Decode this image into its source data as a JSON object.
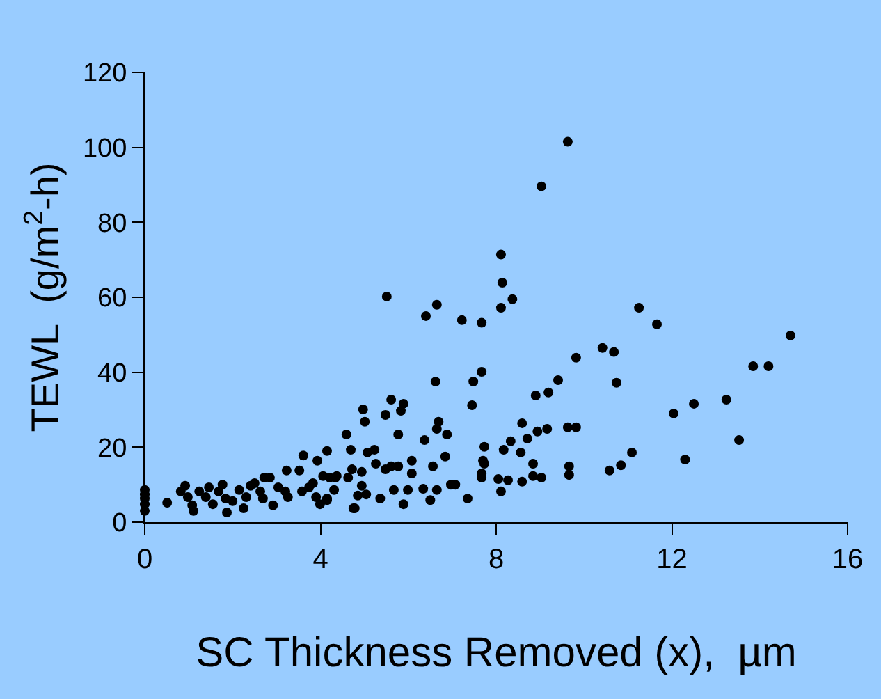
{
  "chart_data": {
    "type": "scatter",
    "xlabel": "SC Thickness Removed (x),  µm",
    "ylabel": "TEWL  (g/m$^{2}$-h)",
    "xlim": [
      0,
      16
    ],
    "xticks": [
      0,
      4,
      8,
      12,
      16
    ],
    "ylim": [
      0,
      120
    ],
    "yticks": [
      0,
      20,
      40,
      60,
      80,
      100,
      120
    ],
    "grid": false,
    "marker": "circle",
    "series": [
      {
        "color": "#000000",
        "x": [
          9.63,
          9.03,
          8.11,
          8.14,
          8.37,
          8.11,
          5.51,
          6.4,
          6.65,
          7.22,
          7.67,
          10.42,
          10.68,
          11.25,
          11.66,
          14.7,
          13.85,
          14.2,
          13.24,
          13.53,
          12.04,
          12.5,
          12.3,
          9.82,
          9.41,
          9.19,
          8.9,
          10.74,
          9.16,
          9.63,
          9.82,
          8.94,
          8.84,
          9.66,
          9.66,
          8.84,
          10.58,
          10.84,
          11.09,
          8.59,
          6.62,
          7.48,
          7.67,
          7.45,
          5.61,
          5.48,
          5.89,
          5.83,
          4.97,
          5.01,
          6.69,
          6.65,
          6.88,
          4.59,
          5.77,
          6.37,
          8.59,
          8.71,
          7.73,
          8.33,
          8.17,
          8.56,
          7.7,
          7.73,
          7.67,
          7.67,
          8.05,
          8.27,
          8.11,
          9.03,
          6.84,
          6.56,
          6.08,
          6.08,
          5.77,
          6.34,
          6.65,
          6.5,
          6.97,
          7.07,
          7.35,
          5.89,
          5.99,
          5.67,
          5.36,
          4.75,
          5.04,
          4.85,
          4.94,
          5.23,
          5.07,
          4.69,
          4.15,
          5.26,
          5.48,
          5.61,
          4.94,
          4.72,
          4.63,
          4.34,
          4.31,
          4.15,
          0,
          0,
          0,
          0,
          0,
          0.51,
          0.92,
          0.82,
          0.98,
          1.08,
          1.11,
          1.24,
          1.46,
          1.39,
          1.55,
          1.68,
          1.77,
          1.84,
          1.87,
          2.0,
          2.15,
          2.25,
          2.31,
          2.41,
          2.5,
          2.63,
          2.72,
          2.85,
          2.69,
          2.92,
          3.04,
          3.2,
          3.26,
          3.23,
          3.52,
          3.61,
          3.93,
          3.58,
          3.74,
          3.9,
          3.99,
          4.15,
          3.83,
          4.06,
          4.21,
          4.37,
          4.78
        ],
        "values": [
          101.5,
          89.6,
          71.4,
          63.9,
          59.5,
          57.2,
          60.2,
          55.0,
          58.0,
          53.9,
          53.2,
          46.5,
          45.4,
          57.2,
          52.8,
          49.8,
          41.6,
          41.6,
          32.7,
          21.9,
          29.0,
          31.6,
          16.7,
          43.9,
          37.9,
          34.6,
          33.8,
          37.2,
          24.9,
          25.3,
          25.3,
          24.2,
          15.6,
          14.9,
          12.6,
          12.3,
          13.8,
          15.2,
          18.6,
          10.8,
          37.5,
          37.5,
          40.1,
          31.2,
          32.7,
          28.6,
          31.6,
          29.7,
          30.1,
          26.8,
          26.8,
          24.9,
          23.4,
          23.4,
          23.4,
          21.9,
          26.4,
          22.3,
          20.1,
          21.6,
          19.3,
          18.6,
          16.4,
          15.6,
          13.0,
          11.9,
          11.5,
          11.2,
          8.2,
          11.9,
          17.5,
          14.9,
          16.4,
          13.0,
          14.9,
          8.9,
          8.6,
          5.9,
          10.0,
          10.0,
          6.3,
          4.8,
          8.6,
          8.6,
          6.3,
          3.7,
          7.4,
          7.1,
          9.7,
          19.3,
          18.6,
          19.3,
          19.0,
          15.6,
          14.1,
          14.9,
          13.4,
          14.1,
          11.9,
          11.9,
          8.6,
          5.9,
          8.6,
          7.4,
          6.3,
          4.8,
          3.0,
          5.2,
          9.7,
          8.2,
          6.7,
          4.5,
          3.0,
          8.2,
          9.3,
          6.7,
          4.8,
          8.2,
          10.0,
          6.3,
          2.6,
          5.6,
          8.6,
          3.7,
          6.7,
          9.7,
          10.4,
          8.2,
          11.9,
          11.9,
          6.3,
          4.5,
          9.3,
          8.2,
          6.7,
          13.8,
          13.8,
          17.8,
          16.4,
          8.2,
          9.3,
          6.7,
          4.8,
          6.3,
          10.4,
          12.3,
          11.9,
          12.3,
          3.7
        ]
      }
    ]
  }
}
